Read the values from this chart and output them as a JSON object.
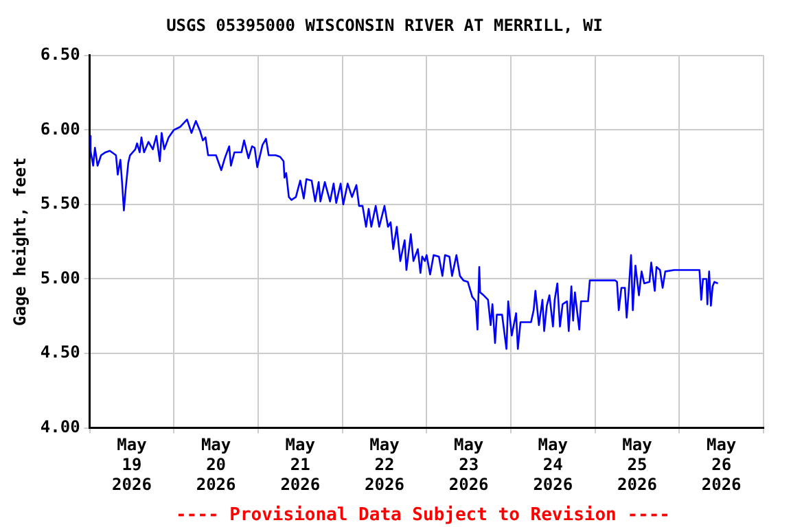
{
  "chart_data": {
    "type": "line",
    "title": "USGS 05395000 WISCONSIN RIVER AT MERRILL, WI",
    "ylabel": "Gage height, feet",
    "annotations": [
      "---- Provisional Data Subject to Revision ----"
    ],
    "xlim": [
      "2026-05-19T00:00",
      "2026-05-27T00:00"
    ],
    "xticks": [
      {
        "value": "2026-05-19T00:00",
        "label": null
      },
      {
        "value": "2026-05-19T12:00",
        "label": "May 19 2026"
      },
      {
        "value": "2026-05-20T00:00",
        "label": null
      },
      {
        "value": "2026-05-20T12:00",
        "label": "May 20 2026"
      },
      {
        "value": "2026-05-21T00:00",
        "label": null
      },
      {
        "value": "2026-05-21T12:00",
        "label": "May 21 2026"
      },
      {
        "value": "2026-05-22T00:00",
        "label": null
      },
      {
        "value": "2026-05-22T12:00",
        "label": "May 22 2026"
      },
      {
        "value": "2026-05-23T00:00",
        "label": null
      },
      {
        "value": "2026-05-23T12:00",
        "label": "May 23 2026"
      },
      {
        "value": "2026-05-24T00:00",
        "label": null
      },
      {
        "value": "2026-05-24T12:00",
        "label": "May 24 2026"
      },
      {
        "value": "2026-05-25T00:00",
        "label": null
      },
      {
        "value": "2026-05-25T12:00",
        "label": "May 25 2026"
      },
      {
        "value": "2026-05-26T00:00",
        "label": null
      },
      {
        "value": "2026-05-26T12:00",
        "label": "May 26 2026"
      },
      {
        "value": "2026-05-27T00:00",
        "label": null
      }
    ],
    "ylim": [
      4.0,
      6.5
    ],
    "yticks": [
      {
        "value": 4.0,
        "label": "4.00"
      },
      {
        "value": 4.5,
        "label": "4.50"
      },
      {
        "value": 5.0,
        "label": "5.00"
      },
      {
        "value": 5.5,
        "label": "5.50"
      },
      {
        "value": 6.0,
        "label": "6.00"
      },
      {
        "value": 6.5,
        "label": "6.50"
      }
    ],
    "grid": true,
    "legend": false,
    "marker": "none",
    "line_style": "solid",
    "x": [
      "2026-05-19T00:00",
      "2026-05-19T00:15",
      "2026-05-19T01:00",
      "2026-05-19T01:30",
      "2026-05-19T02:15",
      "2026-05-19T03:15",
      "2026-05-19T04:30",
      "2026-05-19T05:45",
      "2026-05-19T07:30",
      "2026-05-19T08:00",
      "2026-05-19T08:45",
      "2026-05-19T09:15",
      "2026-05-19T09:45",
      "2026-05-19T10:15",
      "2026-05-19T11:00",
      "2026-05-19T11:30",
      "2026-05-19T13:00",
      "2026-05-19T13:30",
      "2026-05-19T14:15",
      "2026-05-19T14:45",
      "2026-05-19T15:30",
      "2026-05-19T16:45",
      "2026-05-19T18:00",
      "2026-05-19T19:00",
      "2026-05-19T20:00",
      "2026-05-19T20:30",
      "2026-05-19T21:15",
      "2026-05-19T22:30",
      "2026-05-20T00:00",
      "2026-05-20T01:45",
      "2026-05-20T03:45",
      "2026-05-20T05:00",
      "2026-05-20T06:15",
      "2026-05-20T07:30",
      "2026-05-20T08:15",
      "2026-05-20T09:00",
      "2026-05-20T09:45",
      "2026-05-20T12:00",
      "2026-05-20T13:30",
      "2026-05-20T14:30",
      "2026-05-20T15:45",
      "2026-05-20T16:15",
      "2026-05-20T17:15",
      "2026-05-20T19:15",
      "2026-05-20T20:00",
      "2026-05-20T21:15",
      "2026-05-20T22:15",
      "2026-05-20T23:00",
      "2026-05-20T23:45",
      "2026-05-21T01:15",
      "2026-05-21T02:15",
      "2026-05-21T03:00",
      "2026-05-21T05:00",
      "2026-05-21T06:15",
      "2026-05-21T07:15",
      "2026-05-21T07:30",
      "2026-05-21T08:00",
      "2026-05-21T08:45",
      "2026-05-21T09:30",
      "2026-05-21T10:45",
      "2026-05-21T12:00",
      "2026-05-21T13:00",
      "2026-05-21T13:45",
      "2026-05-21T15:15",
      "2026-05-21T16:15",
      "2026-05-21T17:15",
      "2026-05-21T17:45",
      "2026-05-21T19:00",
      "2026-05-21T20:30",
      "2026-05-21T21:30",
      "2026-05-21T22:15",
      "2026-05-21T23:30",
      "2026-05-22T00:15",
      "2026-05-22T01:30",
      "2026-05-22T02:45",
      "2026-05-22T04:00",
      "2026-05-22T04:45",
      "2026-05-22T05:45",
      "2026-05-22T06:45",
      "2026-05-22T07:30",
      "2026-05-22T08:15",
      "2026-05-22T09:30",
      "2026-05-22T10:30",
      "2026-05-22T12:00",
      "2026-05-22T13:00",
      "2026-05-22T13:45",
      "2026-05-22T14:30",
      "2026-05-22T15:30",
      "2026-05-22T16:30",
      "2026-05-22T17:45",
      "2026-05-22T18:15",
      "2026-05-22T19:30",
      "2026-05-22T20:15",
      "2026-05-22T21:30",
      "2026-05-22T22:15",
      "2026-05-22T22:45",
      "2026-05-22T23:30",
      "2026-05-23T00:00",
      "2026-05-23T01:00",
      "2026-05-23T02:00",
      "2026-05-23T03:30",
      "2026-05-23T04:30",
      "2026-05-23T05:15",
      "2026-05-23T06:30",
      "2026-05-23T07:15",
      "2026-05-23T08:30",
      "2026-05-23T09:30",
      "2026-05-23T10:30",
      "2026-05-23T11:45",
      "2026-05-23T13:00",
      "2026-05-23T14:00",
      "2026-05-23T14:30",
      "2026-05-23T15:00",
      "2026-05-23T15:15",
      "2026-05-23T16:15",
      "2026-05-23T17:30",
      "2026-05-23T18:15",
      "2026-05-23T18:45",
      "2026-05-23T19:30",
      "2026-05-23T20:00",
      "2026-05-23T21:30",
      "2026-05-23T22:45",
      "2026-05-23T23:15",
      "2026-05-24T00:15",
      "2026-05-24T01:30",
      "2026-05-24T02:00",
      "2026-05-24T02:45",
      "2026-05-24T05:45",
      "2026-05-24T06:30",
      "2026-05-24T07:00",
      "2026-05-24T08:00",
      "2026-05-24T09:00",
      "2026-05-24T09:30",
      "2026-05-24T10:15",
      "2026-05-24T11:00",
      "2026-05-24T12:00",
      "2026-05-24T12:30",
      "2026-05-24T13:15",
      "2026-05-24T14:00",
      "2026-05-24T14:45",
      "2026-05-24T16:00",
      "2026-05-24T16:30",
      "2026-05-24T17:15",
      "2026-05-24T17:45",
      "2026-05-24T18:15",
      "2026-05-24T19:30",
      "2026-05-24T20:00",
      "2026-05-24T22:00",
      "2026-05-24T22:30",
      "2026-05-25T00:30",
      "2026-05-25T05:45",
      "2026-05-25T06:15",
      "2026-05-25T06:45",
      "2026-05-25T07:30",
      "2026-05-25T08:30",
      "2026-05-25T09:00",
      "2026-05-25T09:30",
      "2026-05-25T10:15",
      "2026-05-25T10:45",
      "2026-05-25T11:30",
      "2026-05-25T12:30",
      "2026-05-25T13:15",
      "2026-05-25T14:00",
      "2026-05-25T15:30",
      "2026-05-25T16:00",
      "2026-05-25T17:00",
      "2026-05-25T17:30",
      "2026-05-25T18:30",
      "2026-05-25T19:15",
      "2026-05-25T20:00",
      "2026-05-25T22:30",
      "2026-05-26T01:00",
      "2026-05-26T03:30",
      "2026-05-26T05:45",
      "2026-05-26T06:15",
      "2026-05-26T06:45",
      "2026-05-26T07:45",
      "2026-05-26T08:00",
      "2026-05-26T08:30",
      "2026-05-26T09:00",
      "2026-05-26T09:30",
      "2026-05-26T10:00",
      "2026-05-26T11:00"
    ],
    "series": [
      {
        "color": "#0000ff",
        "values": [
          5.96,
          5.86,
          5.76,
          5.88,
          5.76,
          5.83,
          5.85,
          5.86,
          5.83,
          5.7,
          5.8,
          5.64,
          5.46,
          5.6,
          5.78,
          5.83,
          5.87,
          5.91,
          5.85,
          5.95,
          5.85,
          5.92,
          5.87,
          5.96,
          5.79,
          5.98,
          5.87,
          5.95,
          6.0,
          6.02,
          6.07,
          5.98,
          6.06,
          5.99,
          5.93,
          5.95,
          5.83,
          5.83,
          5.73,
          5.81,
          5.89,
          5.76,
          5.85,
          5.85,
          5.93,
          5.81,
          5.89,
          5.88,
          5.75,
          5.9,
          5.94,
          5.83,
          5.83,
          5.82,
          5.79,
          5.68,
          5.71,
          5.55,
          5.53,
          5.55,
          5.66,
          5.54,
          5.67,
          5.66,
          5.52,
          5.65,
          5.52,
          5.65,
          5.52,
          5.64,
          5.51,
          5.64,
          5.5,
          5.64,
          5.55,
          5.63,
          5.49,
          5.49,
          5.35,
          5.47,
          5.35,
          5.49,
          5.35,
          5.49,
          5.35,
          5.38,
          5.2,
          5.35,
          5.12,
          5.26,
          5.06,
          5.3,
          5.12,
          5.2,
          5.04,
          5.15,
          5.12,
          5.16,
          5.03,
          5.16,
          5.15,
          5.02,
          5.16,
          5.15,
          5.02,
          5.16,
          5.02,
          4.99,
          4.98,
          4.88,
          4.85,
          4.66,
          5.08,
          4.91,
          4.89,
          4.86,
          4.69,
          4.83,
          4.57,
          4.76,
          4.76,
          4.53,
          4.85,
          4.62,
          4.77,
          4.53,
          4.71,
          4.71,
          4.79,
          4.92,
          4.69,
          4.86,
          4.65,
          4.82,
          4.89,
          4.68,
          4.86,
          4.97,
          4.68,
          4.83,
          4.85,
          4.65,
          4.95,
          4.72,
          4.91,
          4.66,
          4.85,
          4.85,
          4.99,
          4.99,
          4.99,
          4.98,
          4.79,
          4.94,
          4.94,
          4.74,
          4.89,
          5.16,
          4.79,
          5.09,
          4.89,
          5.05,
          4.97,
          4.98,
          5.11,
          4.92,
          5.08,
          5.06,
          4.94,
          5.05,
          5.06,
          5.06,
          5.06,
          5.06,
          4.86,
          5.0,
          5.0,
          4.83,
          5.05,
          4.82,
          4.95,
          4.98,
          4.97
        ]
      }
    ]
  }
}
